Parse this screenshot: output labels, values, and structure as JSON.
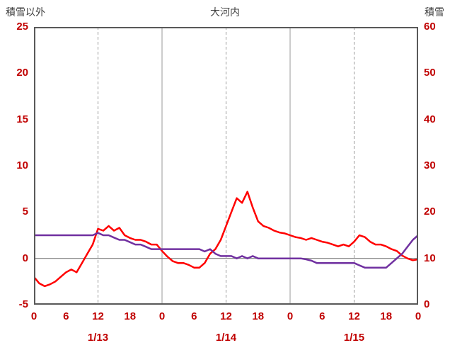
{
  "chart_data": {
    "type": "line",
    "title": "大河内",
    "x_hours_span": 72,
    "x_tick_hours": [
      0,
      6,
      12,
      18,
      24,
      30,
      36,
      42,
      48,
      54,
      60,
      66,
      72
    ],
    "x_tick_labels": [
      "0",
      "6",
      "12",
      "18",
      "0",
      "6",
      "12",
      "18",
      "0",
      "6",
      "12",
      "18",
      "0"
    ],
    "date_labels": [
      {
        "label": "1/13",
        "hour": 12
      },
      {
        "label": "1/14",
        "hour": 36
      },
      {
        "label": "1/15",
        "hour": 60
      }
    ],
    "left_axis": {
      "title": "積雪以外",
      "min": -5,
      "max": 25,
      "ticks": [
        25,
        20,
        15,
        10,
        5,
        0,
        -5
      ]
    },
    "right_axis": {
      "title": "積雪",
      "min": 0,
      "max": 60,
      "ticks": [
        60,
        50,
        40,
        30,
        20,
        10,
        0
      ]
    },
    "gridlines": {
      "vertical_solid_hours": [
        24,
        48
      ],
      "vertical_dashed_hours": [
        12,
        36,
        60
      ],
      "horizontal_left_value": 0
    },
    "series": [
      {
        "name": "積雪以外",
        "axis": "left",
        "color": "#ff0000",
        "x_step_hours": 1,
        "values": [
          -2.0,
          -2.7,
          -3.0,
          -2.8,
          -2.5,
          -2.0,
          -1.5,
          -1.2,
          -1.5,
          -0.5,
          0.5,
          1.5,
          3.2,
          3.0,
          3.5,
          3.0,
          3.3,
          2.5,
          2.2,
          2.0,
          2.0,
          1.8,
          1.5,
          1.5,
          0.8,
          0.2,
          -0.3,
          -0.5,
          -0.5,
          -0.7,
          -1.0,
          -1.0,
          -0.5,
          0.5,
          1.0,
          2.0,
          3.5,
          5.0,
          6.5,
          6.0,
          7.2,
          5.5,
          4.0,
          3.5,
          3.3,
          3.0,
          2.8,
          2.7,
          2.5,
          2.3,
          2.2,
          2.0,
          2.2,
          2.0,
          1.8,
          1.7,
          1.5,
          1.3,
          1.5,
          1.3,
          1.8,
          2.5,
          2.3,
          1.8,
          1.5,
          1.5,
          1.3,
          1.0,
          0.8,
          0.3,
          0.0,
          -0.2,
          -0.1
        ]
      },
      {
        "name": "積雪",
        "axis": "right",
        "color": "#7030a0",
        "x_step_hours": 1,
        "values": [
          15,
          15,
          15,
          15,
          15,
          15,
          15,
          15,
          15,
          15,
          15,
          15,
          15.5,
          15,
          15,
          14.5,
          14,
          14,
          13.5,
          13,
          13,
          12.5,
          12,
          12,
          12,
          12,
          12,
          12,
          12,
          12,
          12,
          12,
          11.5,
          12,
          11,
          10.5,
          10.5,
          10.5,
          10,
          10.5,
          10,
          10.5,
          10,
          10,
          10,
          10,
          10,
          10,
          10,
          10,
          10,
          9.8,
          9.5,
          9,
          9,
          9,
          9,
          9,
          9,
          9,
          9,
          8.5,
          8,
          8,
          8,
          8,
          8,
          9,
          10,
          11,
          12.5,
          14,
          15
        ]
      }
    ],
    "style": {
      "border_color": "#595959",
      "grid_color": "#999999",
      "zero_line_color": "#808080",
      "tick_label_color": "#c00000",
      "title_color": "#404040",
      "background": "#ffffff"
    }
  }
}
